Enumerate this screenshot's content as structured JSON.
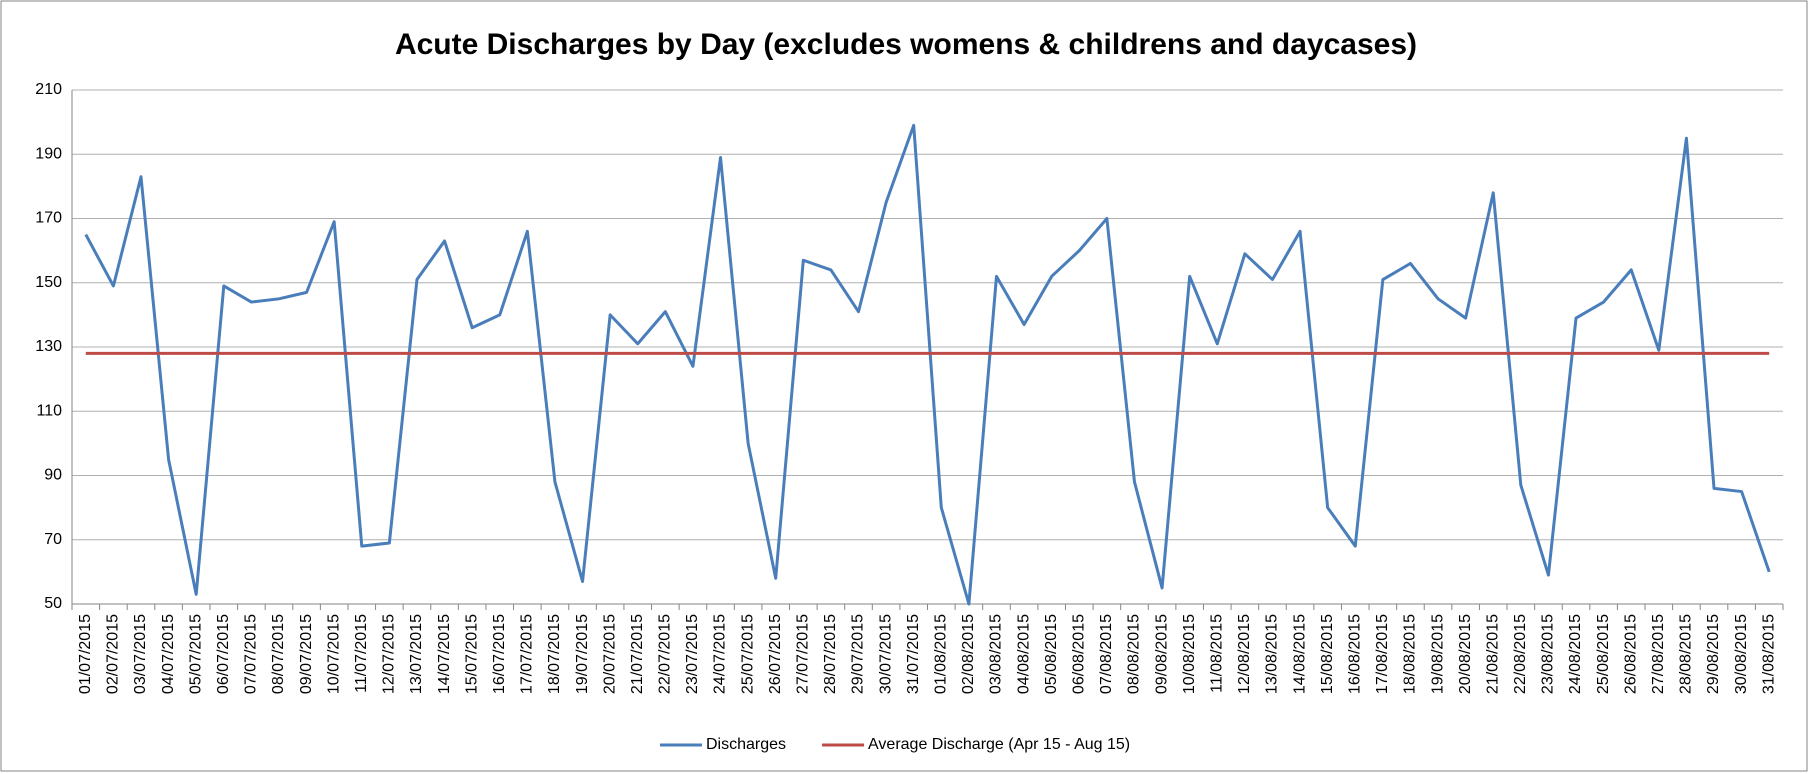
{
  "chart_data": {
    "type": "line",
    "title": "Acute Discharges by Day (excludes womens & childrens and daycases)",
    "categories": [
      "01/07/2015",
      "02/07/2015",
      "03/07/2015",
      "04/07/2015",
      "05/07/2015",
      "06/07/2015",
      "07/07/2015",
      "08/07/2015",
      "09/07/2015",
      "10/07/2015",
      "11/07/2015",
      "12/07/2015",
      "13/07/2015",
      "14/07/2015",
      "15/07/2015",
      "16/07/2015",
      "17/07/2015",
      "18/07/2015",
      "19/07/2015",
      "20/07/2015",
      "21/07/2015",
      "22/07/2015",
      "23/07/2015",
      "24/07/2015",
      "25/07/2015",
      "26/07/2015",
      "27/07/2015",
      "28/07/2015",
      "29/07/2015",
      "30/07/2015",
      "31/07/2015",
      "01/08/2015",
      "02/08/2015",
      "03/08/2015",
      "04/08/2015",
      "05/08/2015",
      "06/08/2015",
      "07/08/2015",
      "08/08/2015",
      "09/08/2015",
      "10/08/2015",
      "11/08/2015",
      "12/08/2015",
      "13/08/2015",
      "14/08/2015",
      "15/08/2015",
      "16/08/2015",
      "17/08/2015",
      "18/08/2015",
      "19/08/2015",
      "20/08/2015",
      "21/08/2015",
      "22/08/2015",
      "23/08/2015",
      "24/08/2015",
      "25/08/2015",
      "26/08/2015",
      "27/08/2015",
      "28/08/2015",
      "29/08/2015",
      "30/08/2015",
      "31/08/2015"
    ],
    "series": [
      {
        "name": "Discharges",
        "color": "#4a7ebb",
        "values": [
          165,
          149,
          183,
          95,
          53,
          149,
          144,
          145,
          147,
          169,
          68,
          69,
          151,
          163,
          136,
          140,
          166,
          88,
          57,
          140,
          131,
          141,
          124,
          189,
          100,
          58,
          157,
          154,
          141,
          175,
          199,
          80,
          50,
          152,
          137,
          152,
          160,
          170,
          88,
          55,
          152,
          131,
          159,
          151,
          166,
          80,
          68,
          151,
          156,
          145,
          139,
          178,
          87,
          59,
          139,
          144,
          154,
          129,
          195,
          86,
          85,
          60
        ]
      },
      {
        "name": "Average Discharge (Apr 15 - Aug 15)",
        "color": "#be4b48",
        "values": [
          128,
          128,
          128,
          128,
          128,
          128,
          128,
          128,
          128,
          128,
          128,
          128,
          128,
          128,
          128,
          128,
          128,
          128,
          128,
          128,
          128,
          128,
          128,
          128,
          128,
          128,
          128,
          128,
          128,
          128,
          128,
          128,
          128,
          128,
          128,
          128,
          128,
          128,
          128,
          128,
          128,
          128,
          128,
          128,
          128,
          128,
          128,
          128,
          128,
          128,
          128,
          128,
          128,
          128,
          128,
          128,
          128,
          128,
          128,
          128,
          128,
          128
        ]
      }
    ],
    "ylim": [
      50,
      210
    ],
    "yticks": [
      50,
      70,
      90,
      110,
      130,
      150,
      170,
      190,
      210
    ],
    "grid": true,
    "legend": "bottom"
  }
}
